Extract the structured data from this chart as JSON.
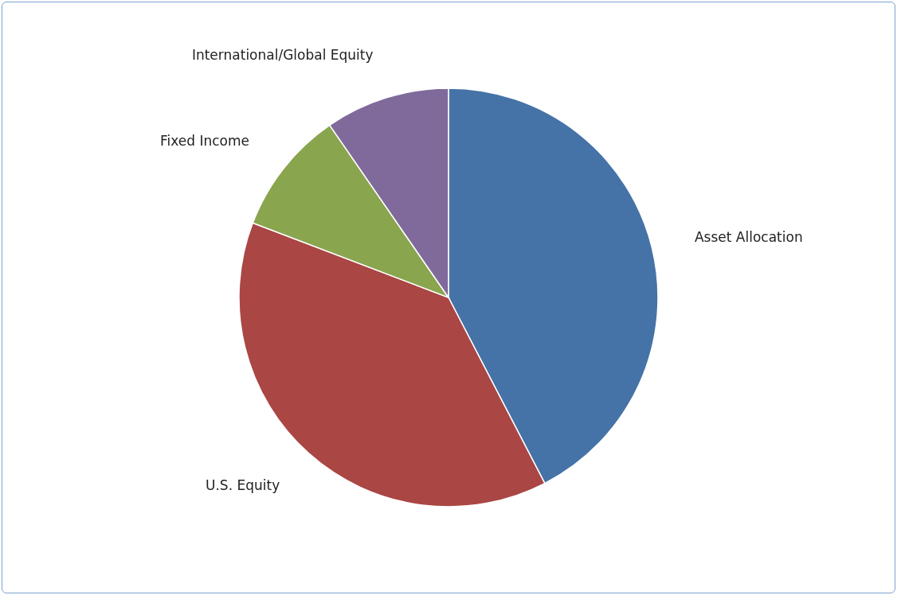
{
  "chart_data": {
    "type": "pie",
    "categories": [
      "Asset Allocation",
      "U.S. Equity",
      "Fixed Income",
      "International/Global Equity"
    ],
    "values": [
      42.4,
      38.4,
      9.6,
      9.6
    ],
    "colors": [
      "#4573a7",
      "#aa4644",
      "#89a54e",
      "#806a9b"
    ]
  }
}
